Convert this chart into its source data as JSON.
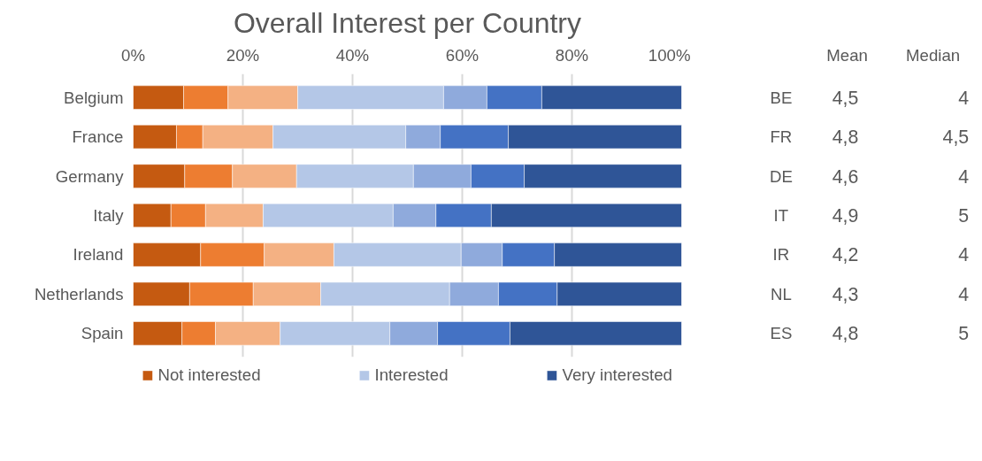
{
  "chart_data": {
    "type": "bar",
    "orientation": "horizontal",
    "stacked": true,
    "title": "Overall Interest per Country",
    "categories": [
      "Belgium",
      "France",
      "Germany",
      "Italy",
      "Ireland",
      "Netherlands",
      "Spain"
    ],
    "series": [
      {
        "name": "Not interested",
        "color": "#c55a11",
        "values": [
          9.2,
          7.9,
          9.4,
          6.9,
          12.3,
          10.3,
          8.9
        ]
      },
      {
        "color": "#ed7d31",
        "values": [
          8.1,
          4.8,
          8.7,
          6.3,
          11.6,
          11.6,
          6.1
        ]
      },
      {
        "color": "#f4b183",
        "values": [
          12.7,
          12.8,
          11.7,
          10.5,
          12.7,
          12.3,
          11.8
        ]
      },
      {
        "name": "Interested",
        "color": "#b4c7e7",
        "values": [
          26.6,
          24.2,
          21.3,
          23.7,
          23.2,
          23.5,
          20.0
        ]
      },
      {
        "color": "#8faadc",
        "values": [
          7.9,
          6.3,
          10.5,
          7.8,
          7.5,
          8.9,
          8.7
        ]
      },
      {
        "color": "#4472c4",
        "values": [
          10.0,
          12.4,
          9.7,
          10.1,
          9.5,
          10.7,
          13.2
        ]
      },
      {
        "name": "Very interested",
        "color": "#2f5597",
        "values": [
          25.5,
          31.6,
          28.7,
          34.7,
          23.2,
          22.7,
          31.3
        ]
      }
    ],
    "xlim": [
      0,
      100
    ],
    "xticks": [
      {
        "value": 0,
        "label": "0%"
      },
      {
        "value": 20,
        "label": "20%"
      },
      {
        "value": 40,
        "label": "40%"
      },
      {
        "value": 60,
        "label": "60%"
      },
      {
        "value": 80,
        "label": "80%"
      },
      {
        "value": 100,
        "label": "100%"
      }
    ],
    "grid": "x",
    "legend": "bottom",
    "annotations": [
      "Mean",
      "Median",
      "BE",
      "4,5",
      "4",
      "FR",
      "4,8",
      "4,5",
      "DE",
      "4,6",
      "4",
      "IT",
      "4,9",
      "5",
      "IR",
      "4,2",
      "4",
      "NL",
      "4,3",
      "4",
      "ES",
      "4,8",
      "5"
    ]
  }
}
